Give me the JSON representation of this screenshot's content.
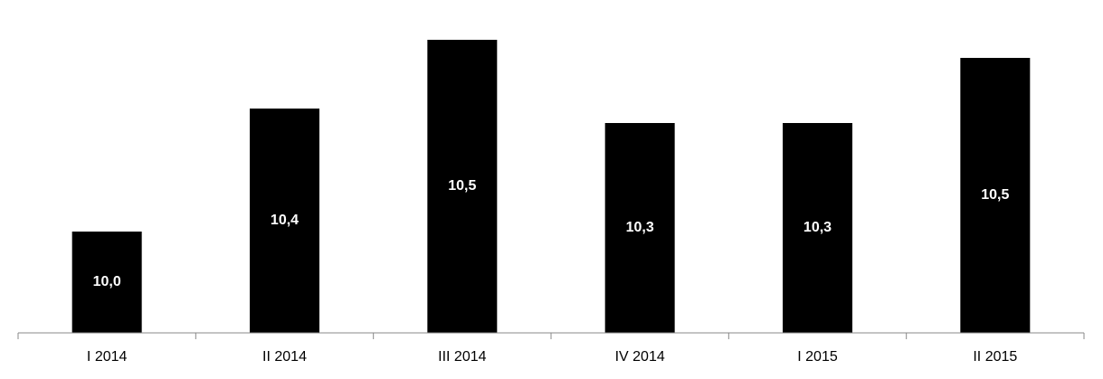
{
  "chart_data": {
    "type": "bar",
    "categories": [
      "I 2014",
      "II 2014",
      "III 2014",
      "IV 2014",
      "I 2015",
      "II 2015"
    ],
    "values": [
      10.01,
      10.35,
      10.54,
      10.31,
      10.31,
      10.49
    ],
    "value_labels": [
      "10,0",
      "10,4",
      "10,5",
      "10,3",
      "10,3",
      "10,5"
    ],
    "color": "#000000",
    "ylim": [
      9.73,
      10.6
    ]
  }
}
